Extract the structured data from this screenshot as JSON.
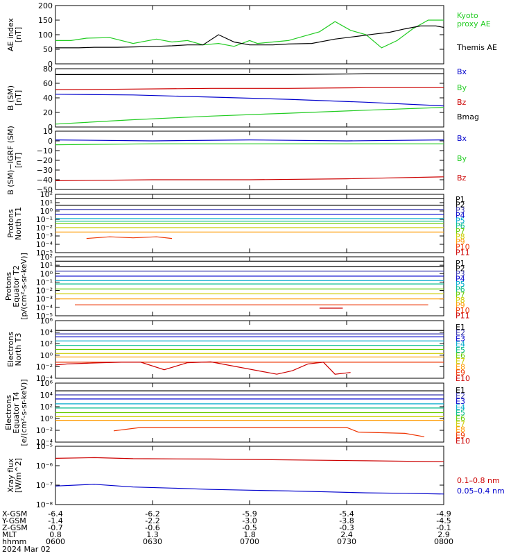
{
  "chart_data": [
    {
      "type": "line",
      "ylabel": "AE index [nT]",
      "scale": "linear",
      "yticks": [
        "0",
        "50",
        "100",
        "150",
        "200"
      ],
      "ylim": [
        0,
        200
      ],
      "series": [
        {
          "name": "Kyoto proxy AE",
          "color": "#22cc22",
          "x": [
            0,
            4,
            8,
            14,
            20,
            26,
            30,
            34,
            38,
            42,
            46,
            50,
            52,
            56,
            60,
            64,
            68,
            72,
            76,
            80,
            84,
            88,
            92,
            96,
            100
          ],
          "y": [
            80,
            80,
            88,
            90,
            70,
            85,
            75,
            80,
            65,
            70,
            60,
            80,
            70,
            75,
            80,
            95,
            110,
            145,
            115,
            100,
            55,
            80,
            120,
            150,
            150
          ]
        },
        {
          "name": "Themis AE",
          "color": "#000000",
          "x": [
            0,
            6,
            10,
            16,
            20,
            26,
            30,
            34,
            38,
            42,
            46,
            50,
            56,
            60,
            66,
            72,
            78,
            82,
            86,
            90,
            94,
            98,
            100
          ],
          "y": [
            55,
            55,
            57,
            57,
            58,
            60,
            62,
            65,
            65,
            100,
            75,
            65,
            65,
            68,
            70,
            85,
            95,
            102,
            108,
            120,
            130,
            130,
            125
          ]
        }
      ]
    },
    {
      "type": "line",
      "ylabel": "B (SM) [nT]",
      "scale": "linear",
      "yticks": [
        "0",
        "20",
        "40",
        "60",
        "80"
      ],
      "ylim": [
        0,
        80
      ],
      "series": [
        {
          "name": "Bx",
          "color": "#0000cc",
          "x": [
            0,
            20,
            40,
            60,
            80,
            100
          ],
          "y": [
            45,
            44,
            41,
            38,
            34,
            29
          ]
        },
        {
          "name": "By",
          "color": "#22cc22",
          "x": [
            0,
            20,
            40,
            60,
            80,
            100
          ],
          "y": [
            4,
            10,
            15,
            19,
            23,
            27
          ]
        },
        {
          "name": "Bz",
          "color": "#cc0000",
          "x": [
            0,
            20,
            40,
            60,
            80,
            100
          ],
          "y": [
            51,
            52,
            53,
            53,
            54,
            54
          ]
        },
        {
          "name": "Bmag",
          "color": "#000000",
          "x": [
            0,
            20,
            40,
            60,
            80,
            100
          ],
          "y": [
            72,
            72,
            72,
            72,
            73,
            73
          ]
        }
      ]
    },
    {
      "type": "line",
      "ylabel": "B (SM)-IGRF (SM) [nT]",
      "scale": "linear",
      "yticks": [
        "10",
        "0",
        "−10",
        "−20",
        "−30",
        "−40",
        "−50"
      ],
      "ylim": [
        -50,
        10
      ],
      "series": [
        {
          "name": "Bx",
          "color": "#0000cc",
          "x": [
            0,
            25,
            50,
            75,
            100
          ],
          "y": [
            1,
            0,
            1,
            0,
            1
          ]
        },
        {
          "name": "By",
          "color": "#22cc22",
          "x": [
            0,
            25,
            50,
            75,
            100
          ],
          "y": [
            -4,
            -3,
            -3,
            -3,
            -3
          ]
        },
        {
          "name": "Bz",
          "color": "#cc0000",
          "x": [
            0,
            25,
            50,
            75,
            100
          ],
          "y": [
            -41,
            -40,
            -40,
            -39,
            -37
          ]
        }
      ]
    },
    {
      "type": "line",
      "ylabel": "Protons North T1",
      "scale": "log",
      "yticks": [
        "10⁻⁵",
        "10⁻⁴",
        "10⁻³",
        "10⁻²",
        "10⁻¹",
        "10⁰",
        "10¹",
        "10²"
      ],
      "ylim": [
        -5,
        2
      ],
      "series": [
        {
          "name": "P1",
          "color": "#000000",
          "x": [
            0,
            100
          ],
          "y": [
            30,
            30
          ]
        },
        {
          "name": "P2",
          "color": "#000000",
          "x": [
            0,
            100
          ],
          "y": [
            5,
            5
          ]
        },
        {
          "name": "P3",
          "color": "#3333aa",
          "x": [
            0,
            100
          ],
          "y": [
            1.5,
            1.5
          ]
        },
        {
          "name": "P4",
          "color": "#0000cc",
          "x": [
            0,
            100
          ],
          "y": [
            0.4,
            0.4
          ]
        },
        {
          "name": "P5",
          "color": "#00aacc",
          "x": [
            0,
            100
          ],
          "y": [
            0.12,
            0.12
          ]
        },
        {
          "name": "P6",
          "color": "#00bb88",
          "x": [
            0,
            100
          ],
          "y": [
            0.06,
            0.06
          ]
        },
        {
          "name": "P7",
          "color": "#66cc00",
          "x": [
            0,
            100
          ],
          "y": [
            0.03,
            0.03
          ]
        },
        {
          "name": "P8",
          "color": "#cccc00",
          "x": [
            0,
            100
          ],
          "y": [
            0.01,
            0.01
          ]
        },
        {
          "name": "P9",
          "color": "#ff9900",
          "x": [
            0,
            100
          ],
          "y": [
            0.003,
            0.003
          ]
        },
        {
          "name": "P10",
          "color": "#ee3300",
          "x": [
            8,
            14,
            20,
            26,
            30
          ],
          "y": [
            0.0005,
            0.0008,
            0.0006,
            0.0008,
            0.0005
          ]
        },
        {
          "name": "P11",
          "color": "#cc0000",
          "x": [],
          "y": []
        }
      ]
    },
    {
      "type": "line",
      "ylabel": "Protons Equator T2 [p/(cm²-s-sr-keV)]",
      "scale": "log",
      "yticks": [
        "10⁻⁵",
        "10⁻⁴",
        "10⁻³",
        "10⁻²",
        "10⁻¹",
        "10⁰",
        "10¹",
        "10²"
      ],
      "ylim": [
        -5,
        2
      ],
      "series": [
        {
          "name": "P1",
          "color": "#000000",
          "x": [
            0,
            100
          ],
          "y": [
            30,
            30
          ]
        },
        {
          "name": "P2",
          "color": "#000000",
          "x": [
            0,
            100
          ],
          "y": [
            7,
            7
          ]
        },
        {
          "name": "P3",
          "color": "#3333aa",
          "x": [
            0,
            100
          ],
          "y": [
            2,
            2
          ]
        },
        {
          "name": "P4",
          "color": "#0000cc",
          "x": [
            0,
            100
          ],
          "y": [
            0.5,
            0.5
          ]
        },
        {
          "name": "P5",
          "color": "#00aacc",
          "x": [
            0,
            100
          ],
          "y": [
            0.15,
            0.15
          ]
        },
        {
          "name": "P6",
          "color": "#00bb88",
          "x": [
            0,
            100
          ],
          "y": [
            0.06,
            0.06
          ]
        },
        {
          "name": "P7",
          "color": "#66cc00",
          "x": [
            0,
            100
          ],
          "y": [
            0.015,
            0.015
          ]
        },
        {
          "name": "P8",
          "color": "#cccc00",
          "x": [
            0,
            100
          ],
          "y": [
            0.004,
            0.004
          ]
        },
        {
          "name": "P9",
          "color": "#ff9900",
          "x": [
            0,
            100
          ],
          "y": [
            0.001,
            0.001
          ]
        },
        {
          "name": "P10",
          "color": "#ee3300",
          "x": [
            5,
            9,
            55,
            61,
            68,
            74,
            82,
            96
          ],
          "y": [
            0.0002,
            0.0002,
            0.0002,
            0.0002,
            0.0002,
            0.0002,
            0.0002,
            0.0002
          ]
        },
        {
          "name": "P11",
          "color": "#cc0000",
          "x": [
            68,
            74
          ],
          "y": [
            8e-05,
            8e-05
          ]
        }
      ]
    },
    {
      "type": "line",
      "ylabel": "Electrons North T3",
      "scale": "log",
      "yticks": [
        "10⁻⁴",
        "10⁻²",
        "10⁰",
        "10²",
        "10⁴",
        "10⁶"
      ],
      "ylim": [
        -4,
        6
      ],
      "series": [
        {
          "name": "E1",
          "color": "#000000",
          "x": [
            0,
            100
          ],
          "y": [
            20000,
            20000
          ]
        },
        {
          "name": "E2",
          "color": "#3333aa",
          "x": [
            0,
            100
          ],
          "y": [
            5000,
            5000
          ]
        },
        {
          "name": "E3",
          "color": "#0000cc",
          "x": [
            0,
            100
          ],
          "y": [
            1500,
            1500
          ]
        },
        {
          "name": "E4",
          "color": "#00aacc",
          "x": [
            0,
            100
          ],
          "y": [
            300,
            300
          ]
        },
        {
          "name": "E5",
          "color": "#00bb88",
          "x": [
            0,
            100
          ],
          "y": [
            50,
            50
          ]
        },
        {
          "name": "E6",
          "color": "#66cc00",
          "x": [
            0,
            100
          ],
          "y": [
            10,
            10
          ]
        },
        {
          "name": "E7",
          "color": "#cccc00",
          "x": [
            0,
            100
          ],
          "y": [
            2,
            2
          ]
        },
        {
          "name": "E8",
          "color": "#ff9900",
          "x": [
            0,
            100
          ],
          "y": [
            0.5,
            0.5
          ]
        },
        {
          "name": "E9",
          "color": "#ee3300",
          "x": [
            0,
            100
          ],
          "y": [
            0.06,
            0.06
          ]
        },
        {
          "name": "E10",
          "color": "#cc0000",
          "x": [
            0,
            3,
            12,
            17,
            22,
            28,
            34,
            40,
            57,
            61,
            65,
            69,
            72,
            76
          ],
          "y": [
            0.02,
            0.03,
            0.05,
            0.06,
            0.06,
            0.003,
            0.05,
            0.07,
            0.0005,
            0.002,
            0.03,
            0.06,
            0.0005,
            0.001
          ]
        }
      ]
    },
    {
      "type": "line",
      "ylabel": "Electrons Equator T4 [e/(cm²-s-sr-keV)]",
      "scale": "log",
      "yticks": [
        "10⁻⁴",
        "10⁻²",
        "10⁰",
        "10²",
        "10⁴",
        "10⁶"
      ],
      "ylim": [
        -4,
        6
      ],
      "series": [
        {
          "name": "E1",
          "color": "#000000",
          "x": [
            0,
            100
          ],
          "y": [
            50000,
            50000
          ]
        },
        {
          "name": "E2",
          "color": "#3333aa",
          "x": [
            0,
            100
          ],
          "y": [
            10000,
            10000
          ]
        },
        {
          "name": "E3",
          "color": "#0000cc",
          "x": [
            0,
            100
          ],
          "y": [
            2000,
            2000
          ]
        },
        {
          "name": "E4",
          "color": "#00aacc",
          "x": [
            0,
            100
          ],
          "y": [
            300,
            300
          ]
        },
        {
          "name": "E5",
          "color": "#00bb88",
          "x": [
            0,
            100
          ],
          "y": [
            60,
            60
          ]
        },
        {
          "name": "E6",
          "color": "#66cc00",
          "x": [
            0,
            100
          ],
          "y": [
            10,
            10
          ]
        },
        {
          "name": "E7",
          "color": "#cccc00",
          "x": [
            0,
            100
          ],
          "y": [
            2,
            2
          ]
        },
        {
          "name": "E8",
          "color": "#ff9900",
          "x": [
            0,
            100
          ],
          "y": [
            0.5,
            0.5
          ]
        },
        {
          "name": "E9",
          "color": "#ee3300",
          "x": [
            15,
            22,
            75,
            78,
            90,
            95
          ],
          "y": [
            0.008,
            0.03,
            0.03,
            0.005,
            0.003,
            0.0008
          ]
        },
        {
          "name": "E10",
          "color": "#cc0000",
          "x": [],
          "y": []
        }
      ]
    },
    {
      "type": "line",
      "ylabel": "Xray flux [W/m^2]",
      "scale": "log",
      "yticks": [
        "10⁻⁸",
        "10⁻⁷",
        "10⁻⁶",
        "10⁻⁵"
      ],
      "ylim": [
        -8,
        -5
      ],
      "series": [
        {
          "name": "0.1–0.8 nm",
          "color": "#cc0000",
          "x": [
            0,
            10,
            20,
            40,
            60,
            80,
            100
          ],
          "y": [
            2.4e-06,
            2.6e-06,
            2.3e-06,
            2.2e-06,
            2e-06,
            1.8e-06,
            1.6e-06
          ]
        },
        {
          "name": "0.05–0.4 nm",
          "color": "#0000cc",
          "x": [
            0,
            10,
            20,
            30,
            40,
            50,
            60,
            70,
            80,
            90,
            100
          ],
          "y": [
            9e-08,
            1.1e-07,
            8e-08,
            7e-08,
            6e-08,
            5.5e-08,
            5e-08,
            4.5e-08,
            4e-08,
            3.8e-08,
            3.5e-08
          ]
        }
      ]
    }
  ],
  "panel_labels": [
    [
      "Kyoto",
      "proxy AE",
      "Themis AE"
    ],
    [
      "Bx",
      "By",
      "Bz",
      "Bmag"
    ],
    [
      "Bx",
      "By",
      "Bz"
    ],
    [
      "P1",
      "P2",
      "P3",
      "P4",
      "P5",
      "P6",
      "P7",
      "P8",
      "P9",
      "P10",
      "P11"
    ],
    [
      "P1",
      "P2",
      "P3",
      "P4",
      "P5",
      "P6",
      "P7",
      "P8",
      "P9",
      "P10",
      "P11"
    ],
    [
      "E1",
      "E2",
      "E3",
      "E4",
      "E5",
      "E6",
      "E7",
      "E8",
      "E9",
      "E10"
    ],
    [
      "E1",
      "E2",
      "E3",
      "E4",
      "E5",
      "E6",
      "E7",
      "E8",
      "E9",
      "E10"
    ],
    [
      "0.1–0.8 nm",
      "0.05–0.4 nm"
    ]
  ],
  "ylabel_lines": [
    [
      "AE index",
      "[nT]"
    ],
    [
      "B (SM)",
      "[nT]"
    ],
    [
      "B (SM)−IGRF (SM)",
      "[nT]"
    ],
    [
      "Protons",
      "North T1"
    ],
    [
      "Protons",
      "Equator T2",
      "[p/(cm²-s-sr-keV)]"
    ],
    [
      "Electrons",
      "North T3"
    ],
    [
      "Electrons",
      "Equator T4",
      "[e/(cm²-s-sr-keV)]"
    ],
    [
      "Xray flux",
      "[W/m^2]"
    ]
  ],
  "x_axis": {
    "row_labels": [
      "X-GSM",
      "Y-GSM",
      "Z-GSM",
      "MLT",
      "hhmm"
    ],
    "columns": [
      [
        "-6.4",
        "-1.4",
        "-0.7",
        "0.8",
        "0600"
      ],
      [
        "-6.2",
        "-2.2",
        "-0.6",
        "1.3",
        "0630"
      ],
      [
        "-5.9",
        "-3.0",
        "-0.5",
        "1.8",
        "0700"
      ],
      [
        "-5.4",
        "-3.8",
        "-0.3",
        "2.4",
        "0730"
      ],
      [
        "-4.9",
        "-4.5",
        "-0.1",
        "2.9",
        "0800"
      ]
    ],
    "date": "2024 Mar 02"
  }
}
